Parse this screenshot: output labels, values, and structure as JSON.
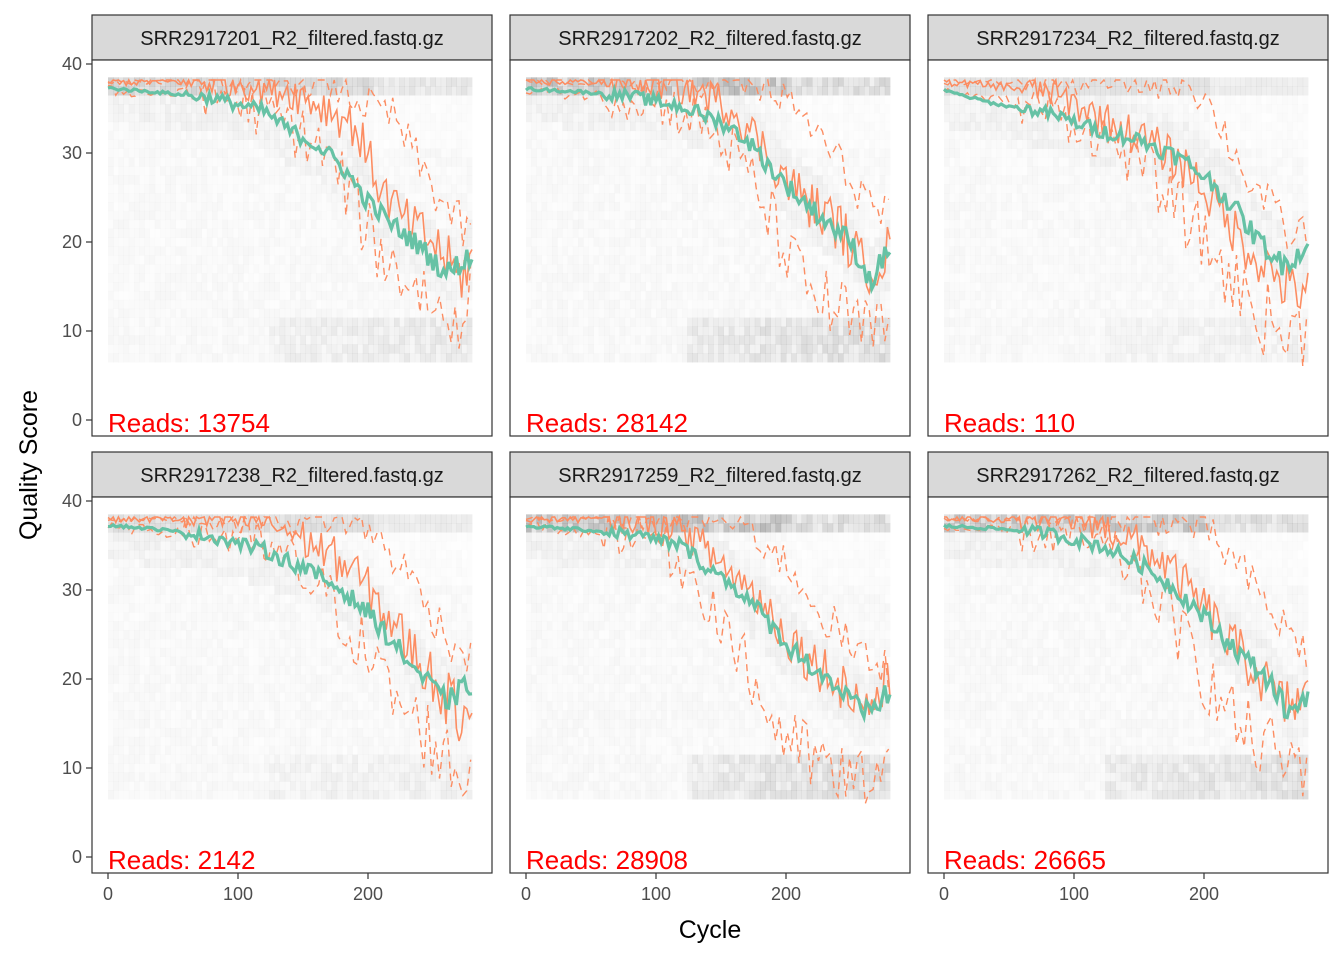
{
  "chart_data": {
    "type": "line",
    "xlabel": "Cycle",
    "ylabel": "Quality Score",
    "xlim": [
      0,
      280
    ],
    "ylim": [
      0,
      40
    ],
    "x_ticks": [
      0,
      100,
      200
    ],
    "y_ticks": [
      0,
      10,
      20,
      30,
      40
    ],
    "grid": false,
    "colors": {
      "mean": "#66c2a5",
      "quartiles": "#fc8d62",
      "reads_label": "#ff0000",
      "strip_fill": "#d9d9d9",
      "heatmap": "#808080"
    },
    "panels": [
      {
        "title": "SRR2917201_R2_filtered.fastq.gz",
        "reads_label": "Reads:",
        "reads_count": "13754",
        "heat_intensity": 0.35,
        "mean": [
          [
            0,
            37.3
          ],
          [
            40,
            36.8
          ],
          [
            80,
            36.2
          ],
          [
            120,
            34.7
          ],
          [
            140,
            32.5
          ],
          [
            160,
            31.0
          ],
          [
            180,
            28.5
          ],
          [
            200,
            24.5
          ],
          [
            220,
            21.8
          ],
          [
            240,
            19.5
          ],
          [
            260,
            16.5
          ],
          [
            280,
            18.5
          ]
        ],
        "median": [
          [
            0,
            38
          ],
          [
            100,
            38
          ],
          [
            140,
            37
          ],
          [
            170,
            35
          ],
          [
            190,
            33
          ],
          [
            210,
            26
          ],
          [
            230,
            22
          ],
          [
            250,
            20
          ],
          [
            270,
            16
          ],
          [
            280,
            18
          ]
        ],
        "q25": [
          [
            0,
            37
          ],
          [
            80,
            36.5
          ],
          [
            130,
            34
          ],
          [
            160,
            31
          ],
          [
            180,
            27
          ],
          [
            200,
            21
          ],
          [
            220,
            17
          ],
          [
            240,
            15
          ],
          [
            260,
            11
          ],
          [
            280,
            14
          ]
        ],
        "q75": [
          [
            0,
            38
          ],
          [
            170,
            38
          ],
          [
            190,
            36
          ],
          [
            220,
            34
          ],
          [
            250,
            26
          ],
          [
            270,
            22
          ],
          [
            280,
            20
          ]
        ]
      },
      {
        "title": "SRR2917202_R2_filtered.fastq.gz",
        "reads_label": "Reads:",
        "reads_count": "28142",
        "heat_intensity": 0.7,
        "mean": [
          [
            0,
            37.2
          ],
          [
            40,
            36.9
          ],
          [
            80,
            36.4
          ],
          [
            120,
            35.2
          ],
          [
            150,
            33.5
          ],
          [
            170,
            31.5
          ],
          [
            190,
            28.0
          ],
          [
            210,
            25.0
          ],
          [
            230,
            22.5
          ],
          [
            250,
            20.0
          ],
          [
            265,
            15.5
          ],
          [
            280,
            19.5
          ]
        ],
        "median": [
          [
            0,
            38
          ],
          [
            100,
            38
          ],
          [
            130,
            37
          ],
          [
            160,
            35
          ],
          [
            180,
            31
          ],
          [
            200,
            27
          ],
          [
            220,
            24
          ],
          [
            240,
            22
          ],
          [
            260,
            17
          ],
          [
            280,
            19
          ]
        ],
        "q25": [
          [
            0,
            37
          ],
          [
            100,
            36
          ],
          [
            140,
            33
          ],
          [
            170,
            28
          ],
          [
            190,
            22
          ],
          [
            210,
            16
          ],
          [
            230,
            13
          ],
          [
            250,
            11
          ],
          [
            270,
            9
          ],
          [
            280,
            12
          ]
        ],
        "q75": [
          [
            0,
            38
          ],
          [
            160,
            38
          ],
          [
            190,
            37
          ],
          [
            220,
            33
          ],
          [
            250,
            27
          ],
          [
            280,
            22
          ]
        ]
      },
      {
        "title": "SRR2917234_R2_filtered.fastq.gz",
        "reads_label": "Reads:",
        "reads_count": "110",
        "heat_intensity": 0.15,
        "mean": [
          [
            0,
            37.0
          ],
          [
            40,
            35.5
          ],
          [
            80,
            34.5
          ],
          [
            120,
            32.5
          ],
          [
            150,
            31.5
          ],
          [
            180,
            29.5
          ],
          [
            200,
            27.5
          ],
          [
            220,
            24.5
          ],
          [
            240,
            20.5
          ],
          [
            260,
            17.5
          ],
          [
            280,
            19.5
          ]
        ],
        "median": [
          [
            0,
            38
          ],
          [
            80,
            37
          ],
          [
            120,
            34
          ],
          [
            160,
            31
          ],
          [
            190,
            28
          ],
          [
            210,
            24
          ],
          [
            230,
            20
          ],
          [
            250,
            17
          ],
          [
            270,
            14
          ],
          [
            280,
            16
          ]
        ],
        "q25": [
          [
            0,
            37
          ],
          [
            80,
            35
          ],
          [
            120,
            32
          ],
          [
            150,
            29
          ],
          [
            180,
            24
          ],
          [
            210,
            18
          ],
          [
            230,
            14
          ],
          [
            250,
            11
          ],
          [
            270,
            9
          ],
          [
            280,
            11
          ]
        ],
        "q75": [
          [
            0,
            38
          ],
          [
            190,
            38
          ],
          [
            210,
            34
          ],
          [
            230,
            28
          ],
          [
            250,
            24
          ],
          [
            270,
            20
          ],
          [
            280,
            22
          ]
        ]
      },
      {
        "title": "SRR2917238_R2_filtered.fastq.gz",
        "reads_label": "Reads:",
        "reads_count": "2142",
        "heat_intensity": 0.2,
        "mean": [
          [
            0,
            37.3
          ],
          [
            40,
            36.8
          ],
          [
            80,
            36.0
          ],
          [
            120,
            34.5
          ],
          [
            150,
            32.5
          ],
          [
            180,
            30.0
          ],
          [
            200,
            27.5
          ],
          [
            220,
            24.0
          ],
          [
            240,
            20.5
          ],
          [
            260,
            17.5
          ],
          [
            280,
            19.5
          ]
        ],
        "median": [
          [
            0,
            38
          ],
          [
            120,
            38
          ],
          [
            160,
            35
          ],
          [
            190,
            32
          ],
          [
            210,
            28
          ],
          [
            230,
            24
          ],
          [
            250,
            20
          ],
          [
            270,
            16
          ],
          [
            280,
            18
          ]
        ],
        "q25": [
          [
            0,
            37
          ],
          [
            100,
            36
          ],
          [
            140,
            33
          ],
          [
            170,
            29
          ],
          [
            190,
            25
          ],
          [
            210,
            20
          ],
          [
            230,
            16
          ],
          [
            250,
            13
          ],
          [
            270,
            9
          ],
          [
            280,
            11
          ]
        ],
        "q75": [
          [
            0,
            38
          ],
          [
            180,
            38
          ],
          [
            200,
            37
          ],
          [
            230,
            32
          ],
          [
            260,
            25
          ],
          [
            280,
            22
          ]
        ]
      },
      {
        "title": "SRR2917259_R2_filtered.fastq.gz",
        "reads_label": "Reads:",
        "reads_count": "28908",
        "heat_intensity": 0.7,
        "mean": [
          [
            0,
            37.2
          ],
          [
            40,
            36.8
          ],
          [
            80,
            36.3
          ],
          [
            120,
            35.0
          ],
          [
            140,
            32.5
          ],
          [
            160,
            30.5
          ],
          [
            180,
            27.5
          ],
          [
            200,
            24.0
          ],
          [
            220,
            21.5
          ],
          [
            240,
            19.0
          ],
          [
            260,
            16.0
          ],
          [
            280,
            18.5
          ]
        ],
        "median": [
          [
            0,
            38
          ],
          [
            100,
            38
          ],
          [
            120,
            37
          ],
          [
            150,
            33
          ],
          [
            180,
            29
          ],
          [
            200,
            25
          ],
          [
            220,
            22
          ],
          [
            240,
            20
          ],
          [
            260,
            17
          ],
          [
            280,
            19
          ]
        ],
        "q25": [
          [
            0,
            37
          ],
          [
            100,
            36
          ],
          [
            130,
            31
          ],
          [
            150,
            27
          ],
          [
            170,
            21
          ],
          [
            190,
            15
          ],
          [
            210,
            12
          ],
          [
            230,
            10
          ],
          [
            250,
            8
          ],
          [
            280,
            10
          ]
        ],
        "q75": [
          [
            0,
            38
          ],
          [
            150,
            38
          ],
          [
            170,
            37
          ],
          [
            200,
            33
          ],
          [
            230,
            27
          ],
          [
            260,
            22
          ],
          [
            280,
            21
          ]
        ]
      },
      {
        "title": "SRR2917262_R2_filtered.fastq.gz",
        "reads_label": "Reads:",
        "reads_count": "26665",
        "heat_intensity": 0.65,
        "mean": [
          [
            0,
            37.2
          ],
          [
            40,
            36.9
          ],
          [
            80,
            36.4
          ],
          [
            120,
            35.0
          ],
          [
            150,
            33.0
          ],
          [
            170,
            31.0
          ],
          [
            190,
            28.5
          ],
          [
            210,
            25.5
          ],
          [
            230,
            22.5
          ],
          [
            250,
            20.0
          ],
          [
            265,
            16.0
          ],
          [
            280,
            18.5
          ]
        ],
        "median": [
          [
            0,
            38
          ],
          [
            110,
            38
          ],
          [
            140,
            36
          ],
          [
            170,
            33
          ],
          [
            200,
            28
          ],
          [
            220,
            24
          ],
          [
            240,
            21
          ],
          [
            260,
            17
          ],
          [
            280,
            18
          ]
        ],
        "q25": [
          [
            0,
            37
          ],
          [
            100,
            36
          ],
          [
            140,
            33
          ],
          [
            170,
            28
          ],
          [
            190,
            23
          ],
          [
            210,
            18
          ],
          [
            230,
            14
          ],
          [
            250,
            12
          ],
          [
            270,
            10
          ],
          [
            280,
            12
          ]
        ],
        "q75": [
          [
            0,
            38
          ],
          [
            170,
            38
          ],
          [
            200,
            37
          ],
          [
            230,
            32
          ],
          [
            260,
            26
          ],
          [
            280,
            23
          ]
        ]
      }
    ]
  }
}
